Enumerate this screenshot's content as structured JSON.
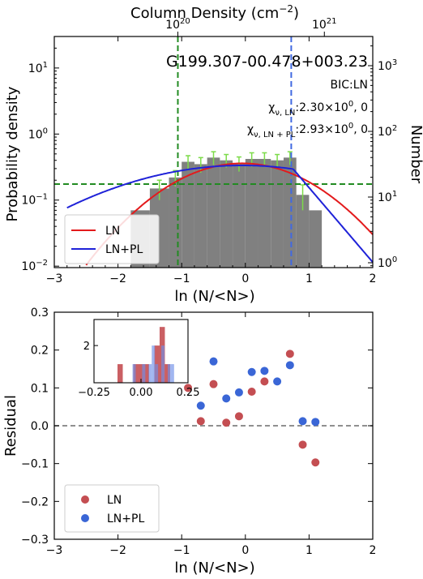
{
  "chart_data": [
    {
      "type": "bar",
      "panel": "top",
      "object_name": "G199.307-00.478+003.23",
      "bic_label": "BIC:LN",
      "chi_ln": {
        "sub": "ν, LN",
        "value": ":2.30×10",
        "exp": "0",
        "tail": ", 0"
      },
      "chi_lnpl": {
        "sub": "ν, LN + PL",
        "value": ":2.93×10",
        "exp": "0",
        "tail": ", 0"
      },
      "xlabel": "ln (N/<N>)",
      "ylabel": "Probability density",
      "y2label": "Number",
      "top_axis": {
        "label": "Column Density (cm",
        "exp": "−2",
        "close": ")",
        "ticks": [
          {
            "base": "10",
            "exp": "20",
            "ln_x": -1.06
          },
          {
            "base": "10",
            "exp": "21",
            "ln_x": 1.24
          }
        ]
      },
      "xlim": [
        -3,
        2
      ],
      "ylim": [
        0.0095,
        30
      ],
      "yscale": "log",
      "x_ticks": [
        "−3",
        "−2",
        "−1",
        "0",
        "1",
        "2"
      ],
      "y_ticks": [
        {
          "base": "10",
          "exp": "−2",
          "value": 0.01
        },
        {
          "base": "10",
          "exp": "−1",
          "value": 0.1
        },
        {
          "base": "10",
          "exp": "0",
          "value": 1
        },
        {
          "base": "10",
          "exp": "1",
          "value": 10
        }
      ],
      "y2_ticks": [
        {
          "base": "10",
          "exp": "0",
          "value": 1
        },
        {
          "base": "10",
          "exp": "1",
          "value": 10
        },
        {
          "base": "10",
          "exp": "2",
          "value": 100
        },
        {
          "base": "10",
          "exp": "3",
          "value": 1000
        }
      ],
      "bars": {
        "bin_edges": [
          -1.8,
          -1.5,
          -1.2,
          -1.0,
          -0.8,
          -0.6,
          -0.4,
          -0.2,
          0.0,
          0.2,
          0.4,
          0.6,
          0.8,
          1.0,
          1.2
        ],
        "values": [
          0.07,
          0.15,
          0.22,
          0.38,
          0.35,
          0.44,
          0.4,
          0.36,
          0.42,
          0.42,
          0.4,
          0.44,
          0.12,
          0.07
        ],
        "errors": [
          0.0,
          0.05,
          0.06,
          0.09,
          0.09,
          0.1,
          0.09,
          0.09,
          0.1,
          0.1,
          0.09,
          0.1,
          0.05,
          0.0
        ],
        "color": "#808080",
        "error_color": "#7ddb4a"
      },
      "vlines": [
        {
          "x": -1.06,
          "color": "#228b22"
        },
        {
          "x": 0.72,
          "color": "#4169e1"
        }
      ],
      "hline": {
        "y": 0.175,
        "color": "#228b22"
      },
      "series": [
        {
          "name": "LN",
          "color": "#e31a1c",
          "model": "lognormal",
          "mu": -0.05,
          "sigma": 0.92,
          "peak": 0.36
        },
        {
          "name": "LN+PL",
          "color": "#1f22d8",
          "model": "lognormal_powerlaw",
          "mu": -0.05,
          "sigma": 1.6,
          "peak": 0.335,
          "x_break": 0.75,
          "slope": -2.6
        }
      ],
      "legend": {
        "position": "lower-left",
        "entries": [
          "LN",
          "LN+PL"
        ]
      }
    },
    {
      "type": "scatter",
      "panel": "bottom",
      "xlabel": "ln (N/<N>)",
      "ylabel": "Residual",
      "xlim": [
        -3,
        2
      ],
      "ylim": [
        -0.3,
        0.3
      ],
      "x_ticks": [
        "−3",
        "−2",
        "−1",
        "0",
        "1",
        "2"
      ],
      "y_ticks": [
        "−0.3",
        "−0.2",
        "−0.1",
        "0.0",
        "0.1",
        "0.2",
        "0.3"
      ],
      "zero_line": {
        "y": 0,
        "color": "#808080"
      },
      "series": [
        {
          "name": "LN",
          "color": "#c44e52",
          "points": [
            [
              -0.9,
              0.1
            ],
            [
              -0.7,
              0.012
            ],
            [
              -0.5,
              0.11
            ],
            [
              -0.3,
              0.008
            ],
            [
              -0.1,
              0.025
            ],
            [
              0.1,
              0.09
            ],
            [
              0.3,
              0.117
            ],
            [
              0.7,
              0.19
            ],
            [
              0.9,
              -0.05
            ],
            [
              1.1,
              -0.097
            ]
          ]
        },
        {
          "name": "LN+PL",
          "color": "#3a66d6",
          "points": [
            [
              -0.7,
              0.053
            ],
            [
              -0.5,
              0.17
            ],
            [
              -0.3,
              0.072
            ],
            [
              -0.1,
              0.088
            ],
            [
              0.1,
              0.142
            ],
            [
              0.3,
              0.145
            ],
            [
              0.5,
              0.117
            ],
            [
              0.7,
              0.16
            ],
            [
              0.9,
              0.012
            ],
            [
              1.1,
              0.01
            ]
          ]
        }
      ],
      "legend": {
        "position": "lower-left",
        "entries": [
          "LN",
          "LN+PL"
        ]
      },
      "inset": {
        "type": "histogram",
        "xlim": [
          -0.25,
          0.25
        ],
        "ylim": [
          0,
          3.4
        ],
        "x_ticks": [
          "−0.25",
          "0.00",
          "0.25"
        ],
        "y_ticks": [
          "2"
        ],
        "series": [
          {
            "name": "LN",
            "color": "#c44e52",
            "bin_edges": [
              -0.125,
              -0.097,
              -0.069,
              -0.041,
              -0.013,
              0.015,
              0.043,
              0.071,
              0.099,
              0.127,
              0.155,
              0.183,
              0.211
            ],
            "counts": [
              1,
              0,
              0,
              1,
              1,
              1,
              0,
              2,
              3,
              1,
              0,
              0
            ]
          },
          {
            "name": "LN+PL",
            "color": "#6f8fe8",
            "bin_edges": [
              -0.045,
              -0.028,
              -0.011,
              0.006,
              0.023,
              0.04,
              0.057,
              0.074,
              0.091,
              0.108,
              0.125,
              0.142,
              0.159,
              0.176
            ],
            "counts": [
              1,
              0,
              0,
              1,
              0,
              1,
              2,
              1,
              0,
              2,
              0,
              1,
              1
            ]
          }
        ]
      }
    }
  ]
}
